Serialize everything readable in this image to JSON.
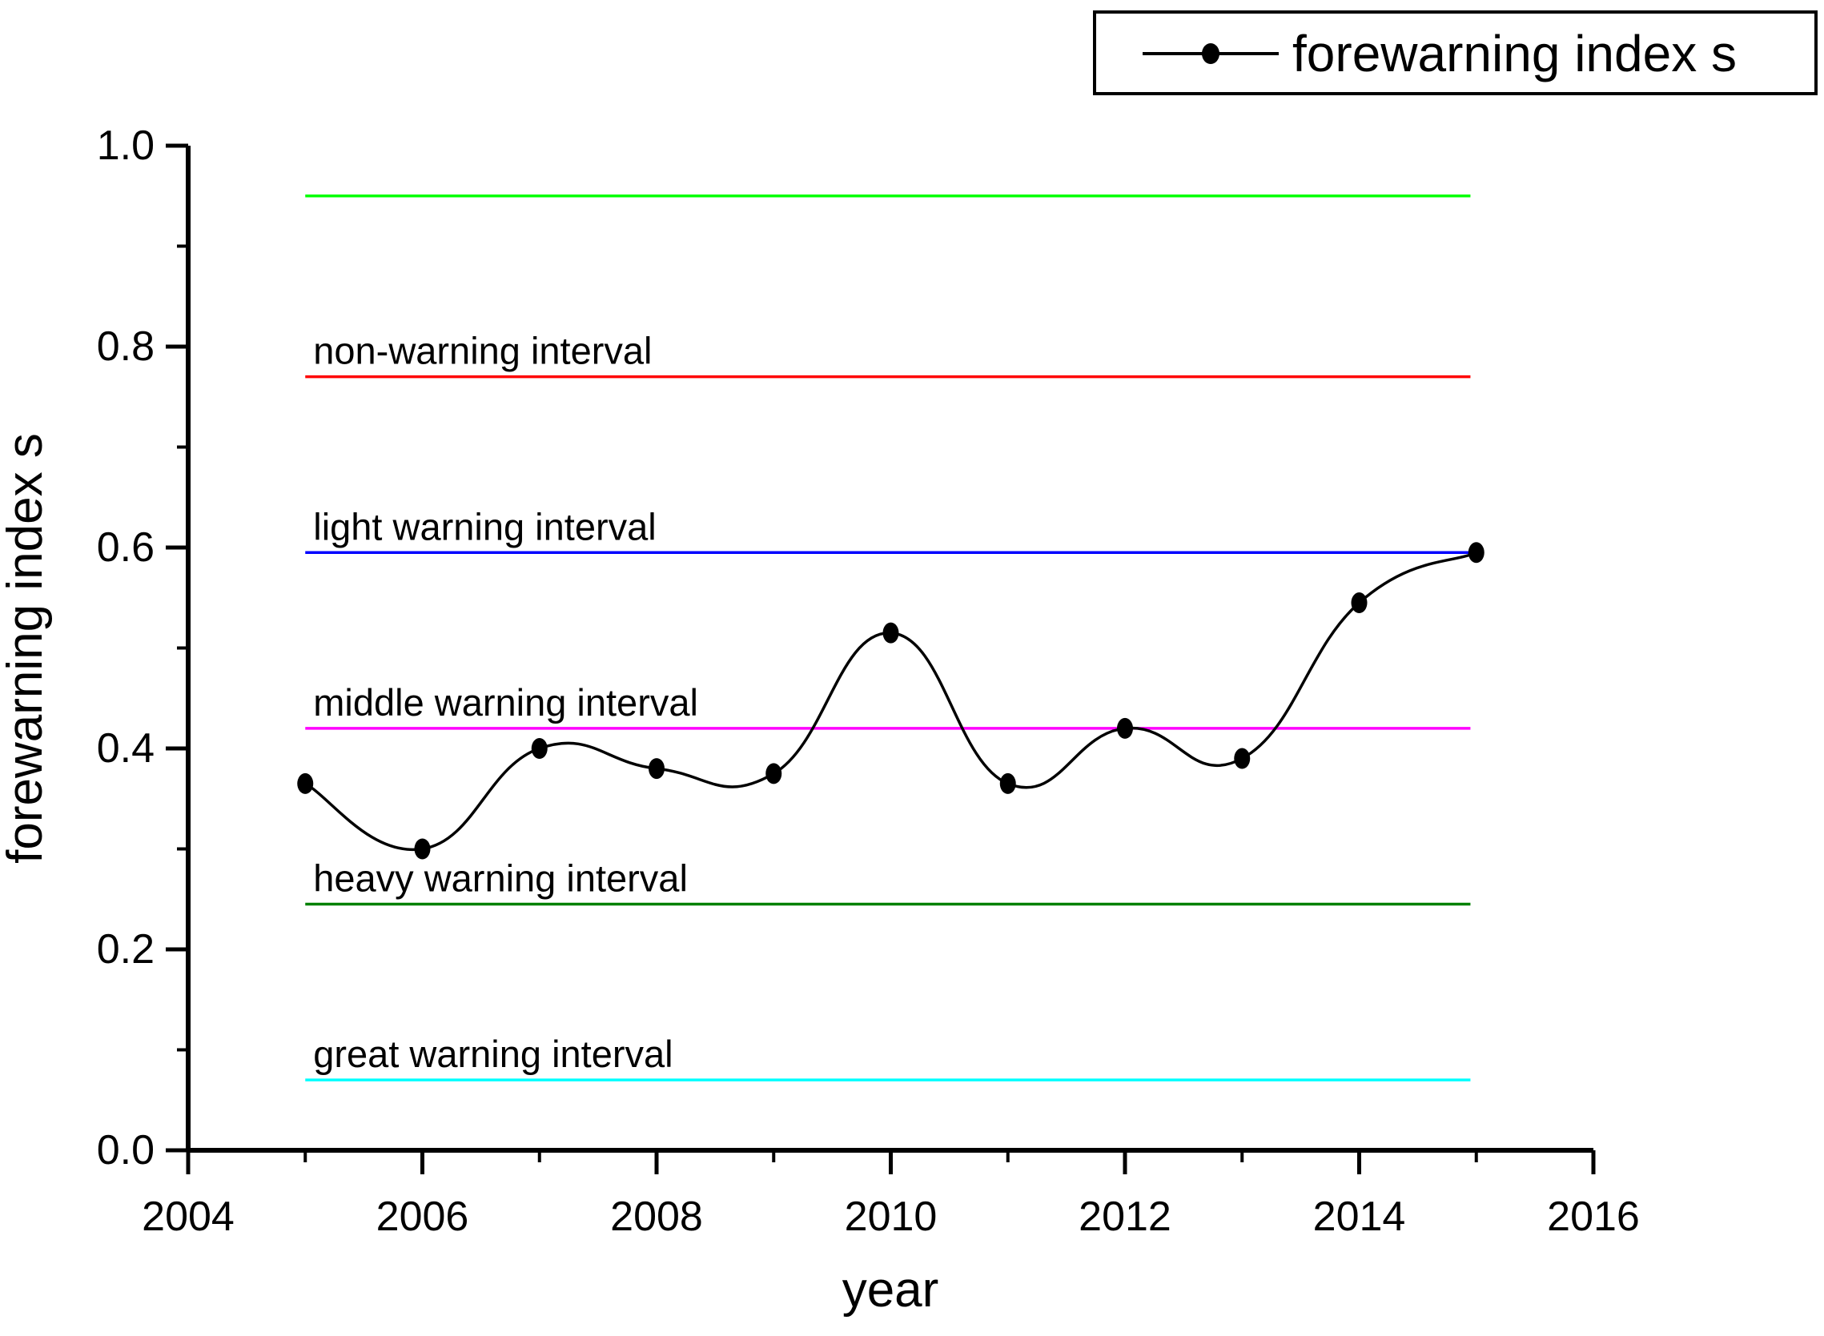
{
  "chart_data": {
    "type": "line",
    "title": "",
    "x_title": "year",
    "y_title": "forewarning index s",
    "legend": {
      "label": "forewarning index s",
      "position": "top-right"
    },
    "grid": false,
    "xlim": [
      2004,
      2016
    ],
    "ylim": [
      0.0,
      1.0
    ],
    "x_major_ticks": [
      "2004",
      "2006",
      "2008",
      "2010",
      "2012",
      "2014",
      "2016"
    ],
    "x_minor_ticks": [
      2005,
      2007,
      2009,
      2011,
      2013,
      2015
    ],
    "y_major_ticks": [
      "0.0",
      "0.2",
      "0.4",
      "0.6",
      "0.8",
      "1.0"
    ],
    "y_minor_ticks": [
      0.1,
      0.3,
      0.5,
      0.7,
      0.9
    ],
    "x": [
      2005,
      2006,
      2007,
      2008,
      2009,
      2010,
      2011,
      2012,
      2013,
      2014,
      2015
    ],
    "series": [
      {
        "name": "forewarning index s",
        "color": "#000000",
        "values": [
          0.365,
          0.3,
          0.4,
          0.38,
          0.375,
          0.515,
          0.365,
          0.42,
          0.39,
          0.545,
          0.595
        ]
      }
    ],
    "threshold_lines": [
      {
        "label": "",
        "value": 0.95,
        "color": "#00ff00"
      },
      {
        "label": "non-warning interval",
        "value": 0.77,
        "color": "#ff0000"
      },
      {
        "label": "light warning interval",
        "value": 0.595,
        "color": "#0000ff"
      },
      {
        "label": "middle warning interval",
        "value": 0.42,
        "color": "#ff00ff"
      },
      {
        "label": "heavy warning interval",
        "value": 0.245,
        "color": "#008000"
      },
      {
        "label": "great warning interval",
        "value": 0.07,
        "color": "#00ffff"
      }
    ],
    "threshold_x_span": [
      2005,
      2014.95
    ]
  }
}
